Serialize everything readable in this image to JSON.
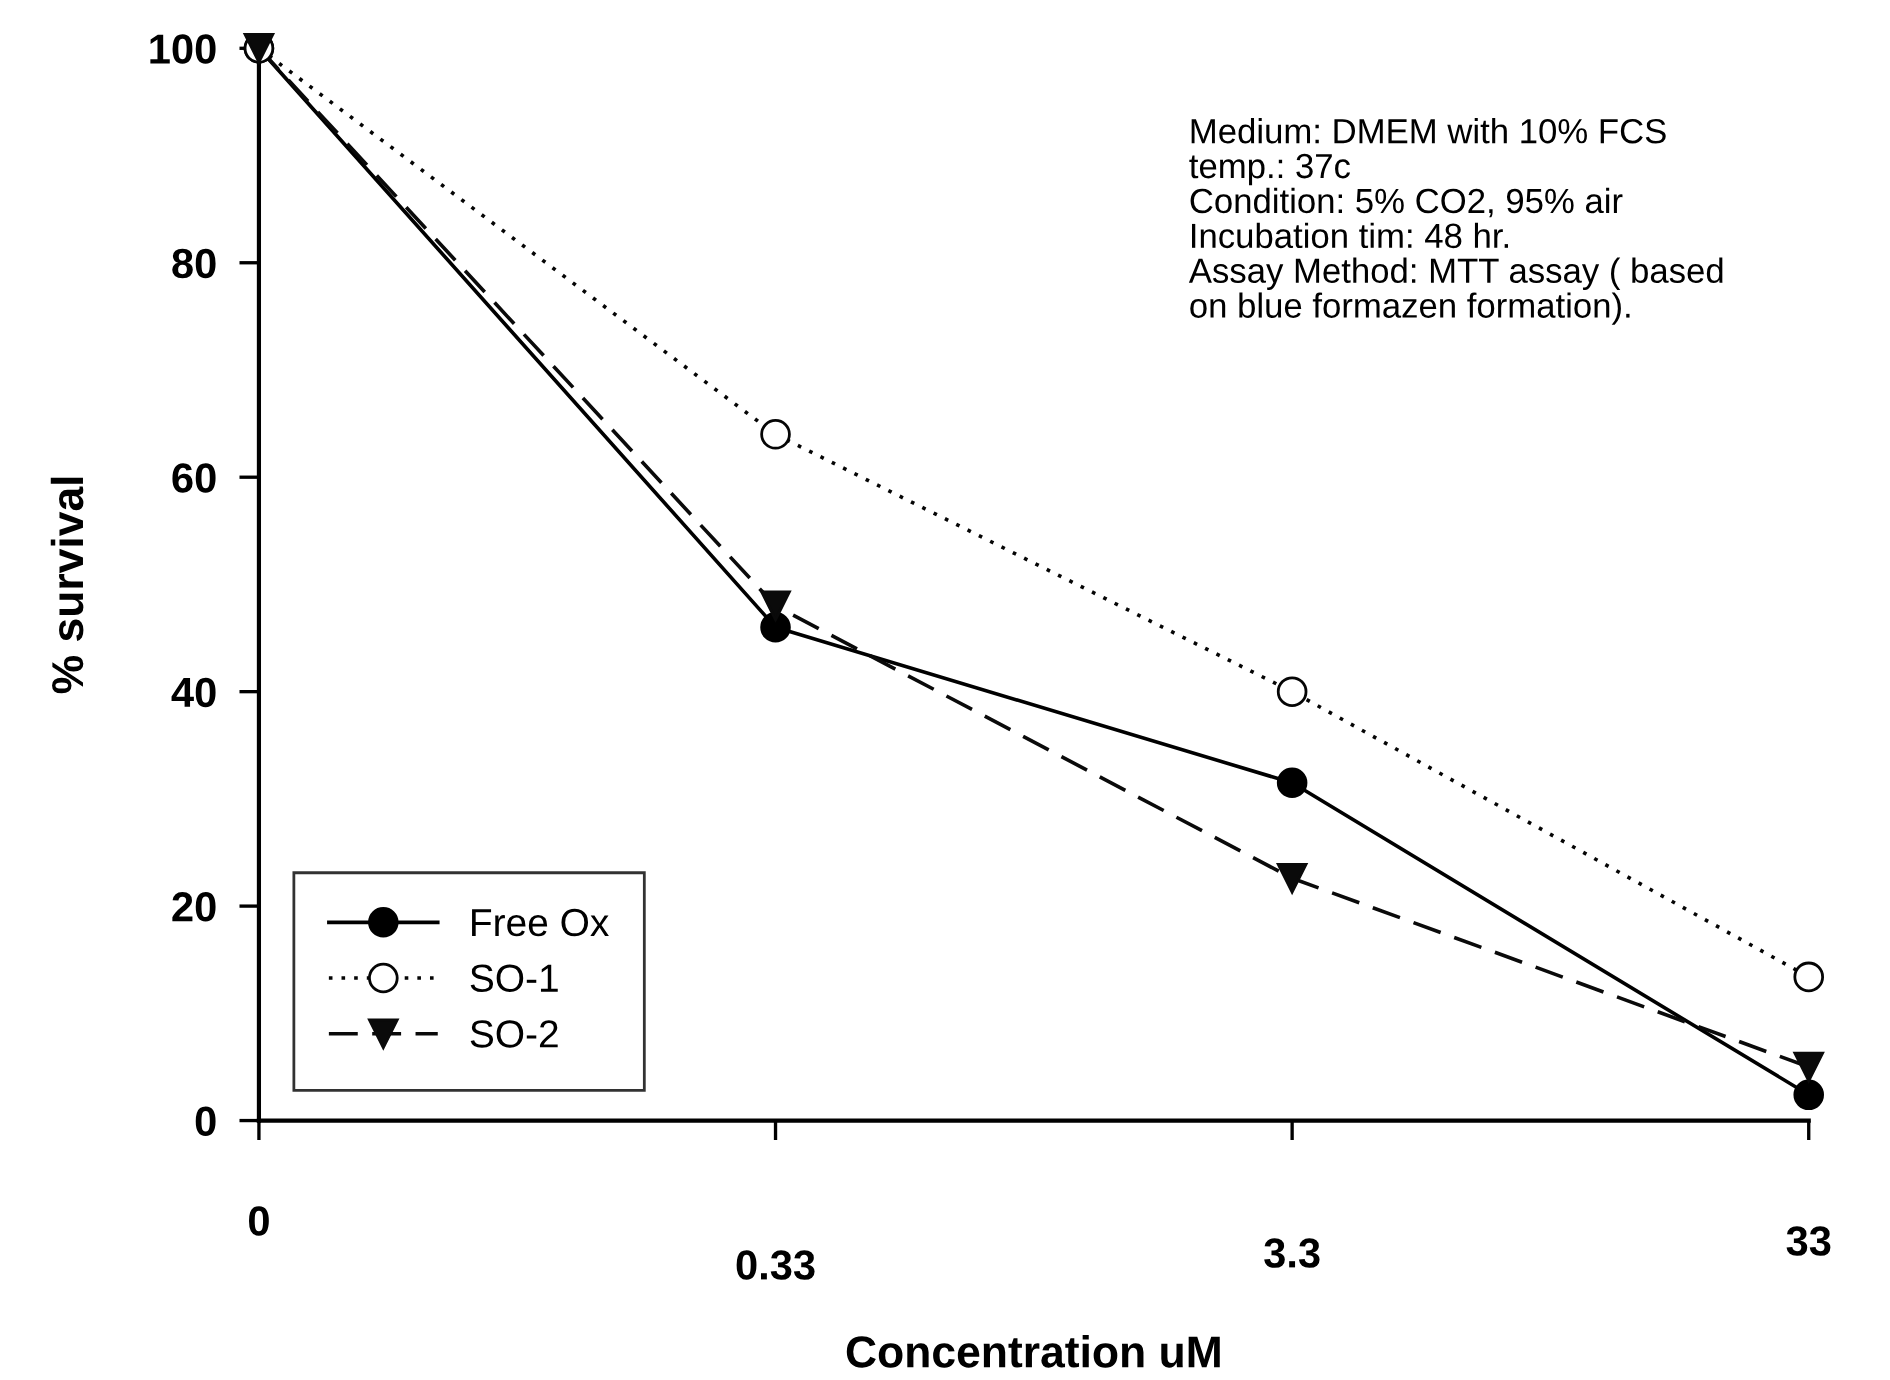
{
  "chart_data": {
    "type": "line",
    "xlabel": "Concentration uM",
    "ylabel": "% survival",
    "categories": [
      "0",
      "0.33",
      "3.3",
      "33"
    ],
    "series": [
      {
        "name": "Free Ox",
        "color": "#000000",
        "values": [
          100,
          46,
          31.5,
          2.4
        ],
        "marker": "circle",
        "line_style": "solid"
      },
      {
        "name": "SO-1",
        "color": "#050505",
        "values": [
          100,
          64,
          40,
          13.4
        ],
        "marker": "circle",
        "line_style": "dotted"
      },
      {
        "name": "SO-2",
        "color": "#0a0a0a",
        "values": [
          100,
          48,
          22.6,
          5
        ],
        "marker": "triangle",
        "line_style": "dashed"
      }
    ],
    "ylim": [
      0,
      100
    ],
    "yticks": [
      0,
      20,
      40,
      60,
      80,
      100
    ],
    "grid": false,
    "legend": "bottom left",
    "annotations": [
      "Medium: DMEM with 10% FCS\ntemp.: 37c\nCondition: 5% CO2, 95% air\nIncubation tim: 48 hr.\nAssay Method: MTT assay ( based\non blue formazen formation)."
    ]
  }
}
